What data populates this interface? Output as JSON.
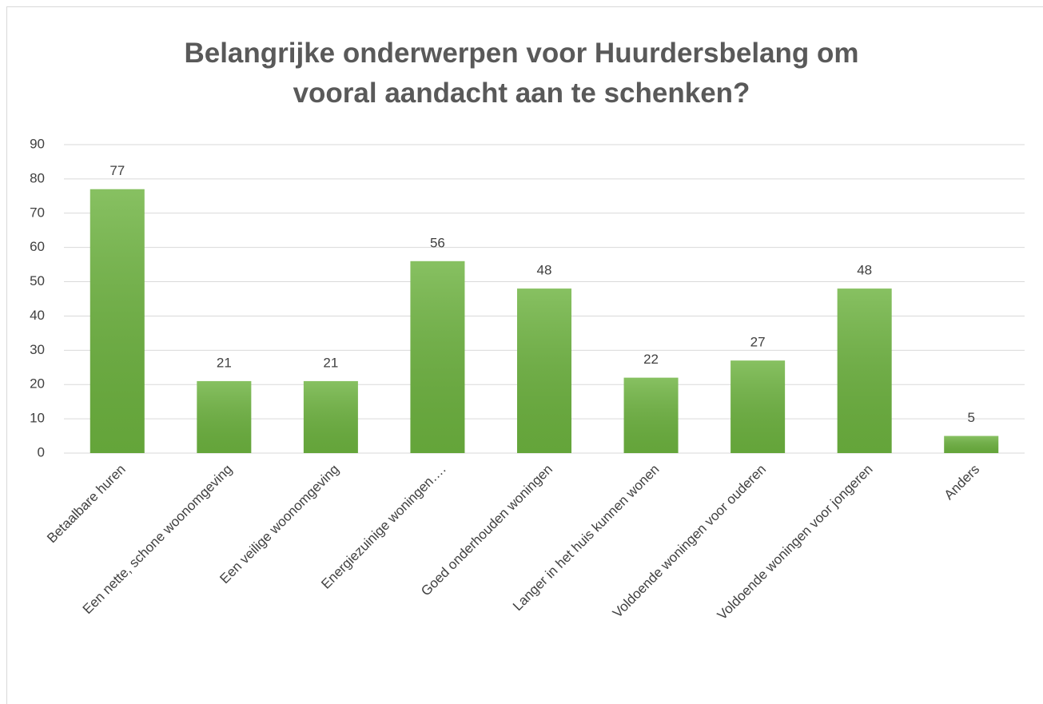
{
  "chart_data": {
    "type": "bar",
    "title": "Belangrijke onderwerpen voor Huurdersbelang om vooral aandacht aan te schenken?",
    "categories": [
      "Betaalbare huren",
      "Een nette, schone woonomgeving",
      "Een veilige woonomgeving",
      "Energiezuinige woningen….",
      "Goed onderhouden woningen",
      "Langer in het huis kunnen wonen",
      "Voldoende woningen voor ouderen",
      "Voldoende woningen voor jongeren",
      "Anders"
    ],
    "values": [
      77,
      21,
      21,
      56,
      48,
      22,
      27,
      48,
      5
    ],
    "color": "#6db33f",
    "ylim": [
      0,
      90
    ],
    "yticks": [
      0,
      10,
      20,
      30,
      40,
      50,
      60,
      70,
      80,
      90
    ],
    "grid": true
  }
}
